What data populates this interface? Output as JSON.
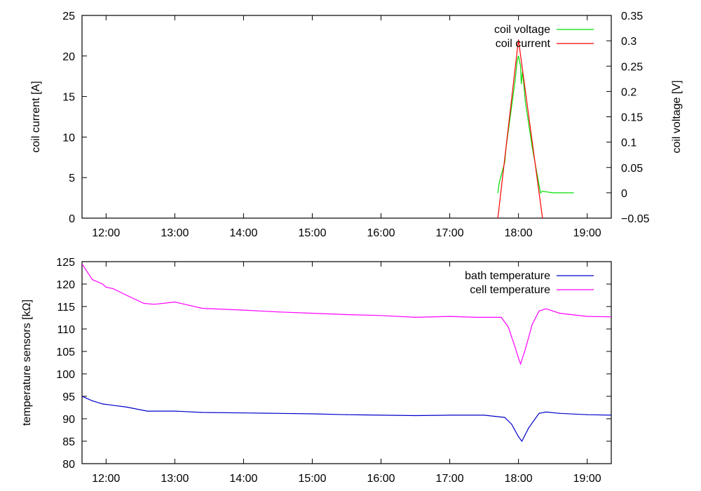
{
  "chart_data": [
    {
      "type": "line",
      "xlabel": "",
      "ylabel": "coil current [A]",
      "y2label": "coil voltage [V]",
      "xlim": [
        11.65,
        19.35
      ],
      "ylim": [
        0,
        25
      ],
      "y2lim": [
        -0.05,
        0.35
      ],
      "x_ticks": [
        12,
        13,
        14,
        15,
        16,
        17,
        18,
        19
      ],
      "x_tick_labels": [
        "12:00",
        "13:00",
        "14:00",
        "15:00",
        "16:00",
        "17:00",
        "18:00",
        "19:00"
      ],
      "y_ticks": [
        0,
        5,
        10,
        15,
        20,
        25
      ],
      "y_tick_labels": [
        "0",
        "5",
        "10",
        "15",
        "20",
        "25"
      ],
      "y2_ticks": [
        -0.05,
        0,
        0.05,
        0.1,
        0.15,
        0.2,
        0.25,
        0.3,
        0.35
      ],
      "y2_tick_labels": [
        "−0.05",
        "0",
        "0.05",
        "0.1",
        "0.15",
        "0.2",
        "0.25",
        "0.3",
        "0.35"
      ],
      "legend_position": "top-right",
      "series": [
        {
          "name": "coil voltage",
          "axis": "right",
          "color": "#00dd00",
          "x": [
            17.7,
            17.72,
            17.8,
            17.82,
            17.9,
            17.95,
            17.98,
            18.0,
            18.03,
            18.04,
            18.06,
            18.1,
            18.2,
            18.28,
            18.32,
            18.35,
            18.5,
            18.8
          ],
          "y": [
            0.0,
            0.02,
            0.06,
            0.09,
            0.17,
            0.22,
            0.26,
            0.27,
            0.25,
            0.215,
            0.24,
            0.18,
            0.09,
            0.03,
            0.0,
            0.003,
            0.0,
            0.0
          ]
        },
        {
          "name": "coil current",
          "axis": "left",
          "color": "#ff0000",
          "x": [
            17.7,
            18.0,
            18.35
          ],
          "y": [
            0,
            22,
            0
          ]
        }
      ]
    },
    {
      "type": "line",
      "xlabel": "",
      "ylabel": "temperature sensors [kΩ]",
      "xlim": [
        11.65,
        19.35
      ],
      "ylim": [
        80,
        125
      ],
      "x_ticks": [
        12,
        13,
        14,
        15,
        16,
        17,
        18,
        19
      ],
      "x_tick_labels": [
        "12:00",
        "13:00",
        "14:00",
        "15:00",
        "16:00",
        "17:00",
        "18:00",
        "19:00"
      ],
      "y_ticks": [
        80,
        85,
        90,
        95,
        100,
        105,
        110,
        115,
        120,
        125
      ],
      "y_tick_labels": [
        "80",
        "85",
        "90",
        "95",
        "100",
        "105",
        "110",
        "115",
        "120",
        "125"
      ],
      "legend_position": "top-right",
      "series": [
        {
          "name": "bath temperature",
          "color": "#0000cc",
          "x": [
            11.65,
            11.8,
            11.95,
            12.1,
            12.3,
            12.6,
            13.0,
            13.4,
            14.0,
            14.5,
            15.0,
            15.5,
            16.0,
            16.5,
            17.0,
            17.5,
            17.8,
            17.9,
            18.0,
            18.05,
            18.15,
            18.3,
            18.4,
            18.6,
            19.0,
            19.35
          ],
          "y": [
            95.0,
            94.0,
            93.3,
            93.0,
            92.6,
            91.7,
            91.7,
            91.4,
            91.3,
            91.2,
            91.1,
            90.9,
            90.8,
            90.7,
            90.8,
            90.8,
            90.3,
            88.8,
            86.0,
            85.0,
            88.0,
            91.2,
            91.5,
            91.2,
            90.9,
            90.8
          ]
        },
        {
          "name": "cell temperature",
          "color": "#ff00ff",
          "x": [
            11.65,
            11.8,
            11.95,
            12.0,
            12.1,
            12.3,
            12.55,
            12.7,
            13.0,
            13.2,
            13.4,
            14.0,
            14.5,
            15.0,
            15.5,
            16.0,
            16.5,
            17.0,
            17.4,
            17.75,
            17.85,
            17.95,
            18.0,
            18.03,
            18.1,
            18.2,
            18.3,
            18.4,
            18.6,
            19.0,
            19.35
          ],
          "y": [
            124.5,
            121.0,
            120.0,
            119.3,
            119.0,
            117.5,
            115.7,
            115.5,
            116.0,
            115.3,
            114.6,
            114.2,
            113.8,
            113.5,
            113.2,
            113.0,
            112.6,
            112.8,
            112.6,
            112.6,
            110.5,
            106.0,
            103.5,
            102.2,
            105.5,
            111.0,
            114.0,
            114.5,
            113.5,
            112.8,
            112.7
          ]
        }
      ]
    }
  ]
}
